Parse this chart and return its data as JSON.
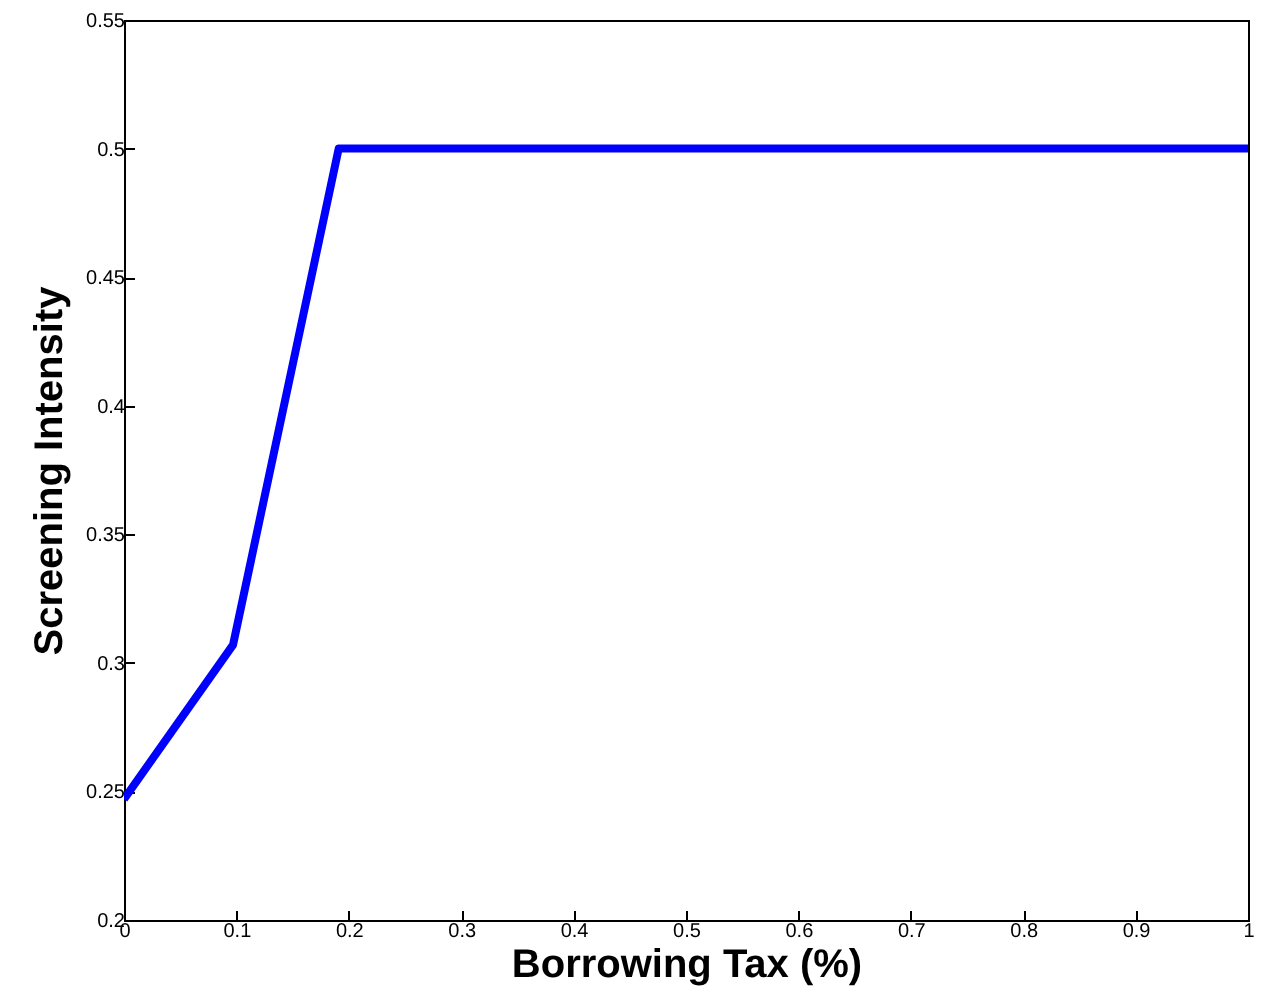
{
  "chart_data": {
    "type": "line",
    "xlabel": "Borrowing Tax (%)",
    "ylabel": "Screening Intensity",
    "x": [
      0,
      0.097,
      0.191,
      1
    ],
    "series": [
      {
        "color": "#0000ff",
        "values": [
          0.247,
          0.307,
          0.5,
          0.5
        ]
      }
    ],
    "xlim": [
      0,
      1
    ],
    "xticks": [
      0,
      0.1,
      0.2,
      0.3,
      0.4,
      0.5,
      0.6,
      0.7,
      0.8,
      0.9,
      1
    ],
    "ylim": [
      0.2,
      0.55
    ],
    "yticks": [
      0.2,
      0.25,
      0.3,
      0.35,
      0.4,
      0.45,
      0.5,
      0.55
    ],
    "grid": false,
    "marker": "none",
    "line_style": "solid"
  }
}
